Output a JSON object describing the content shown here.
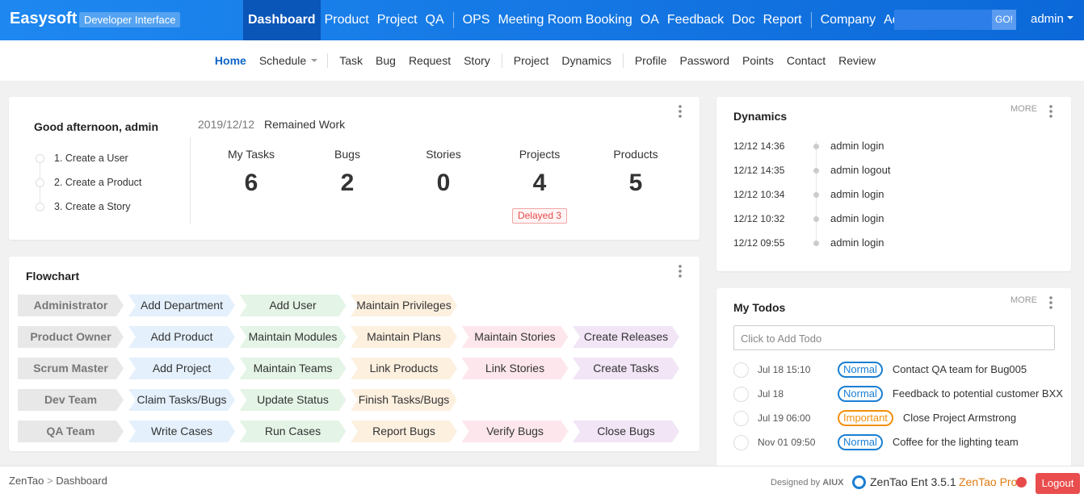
{
  "header": {
    "brand": "Easysoft",
    "badge": "Developer Interface",
    "nav": [
      [
        "Dashboard",
        "Product",
        "Project",
        "QA"
      ],
      [
        "OPS",
        "Meeting Room Booking",
        "OA",
        "Feedback",
        "Doc",
        "Report"
      ],
      [
        "Company",
        "Admin"
      ]
    ],
    "search_button": "GO!",
    "user": "admin"
  },
  "subnav": [
    [
      "Home",
      "Schedule"
    ],
    [
      "Task",
      "Bug",
      "Request",
      "Story"
    ],
    [
      "Project",
      "Dynamics"
    ],
    [
      "Profile",
      "Password",
      "Points",
      "Contact",
      "Review"
    ]
  ],
  "welcome": {
    "greeting": "Good afternoon, admin",
    "steps": [
      "1. Create a User",
      "2. Create a Product",
      "3. Create a Story"
    ],
    "date": "2019/12/12",
    "remained": "Remained Work",
    "stats": [
      {
        "label": "My Tasks",
        "value": 6
      },
      {
        "label": "Bugs",
        "value": 2
      },
      {
        "label": "Stories",
        "value": 0
      },
      {
        "label": "Projects",
        "value": 4,
        "note": "Delayed 3"
      },
      {
        "label": "Products",
        "value": 5
      }
    ]
  },
  "flowchart": {
    "title": "Flowchart",
    "rows": [
      {
        "role": "Administrator",
        "steps": [
          "Add Department",
          "Add User",
          "Maintain Privileges"
        ]
      },
      {
        "role": "Product Owner",
        "steps": [
          "Add Product",
          "Maintain Modules",
          "Maintain Plans",
          "Maintain Stories",
          "Create Releases"
        ]
      },
      {
        "role": "Scrum Master",
        "steps": [
          "Add Project",
          "Maintain Teams",
          "Link Products",
          "Link Stories",
          "Create Tasks"
        ]
      },
      {
        "role": "Dev Team",
        "steps": [
          "Claim Tasks/Bugs",
          "Update Status",
          "Finish Tasks/Bugs"
        ]
      },
      {
        "role": "QA Team",
        "steps": [
          "Write Cases",
          "Run Cases",
          "Report Bugs",
          "Verify Bugs",
          "Close Bugs"
        ]
      }
    ]
  },
  "dynamics": {
    "title": "Dynamics",
    "more": "MORE",
    "items": [
      {
        "time": "12/12 14:36",
        "text": "admin login"
      },
      {
        "time": "12/12 14:35",
        "text": "admin logout"
      },
      {
        "time": "12/12 10:34",
        "text": "admin login"
      },
      {
        "time": "12/12 10:32",
        "text": "admin login"
      },
      {
        "time": "12/12 09:55",
        "text": "admin login"
      }
    ]
  },
  "todos": {
    "title": "My Todos",
    "more": "MORE",
    "placeholder": "Click to Add Todo",
    "items": [
      {
        "date": "Jul 18 15:10",
        "priority": {
          "label": "Normal",
          "color": "#1a7fd4"
        },
        "text": "Contact QA team for Bug005"
      },
      {
        "date": "Jul 18",
        "priority": {
          "label": "Normal",
          "color": "#1a7fd4"
        },
        "text": "Feedback to potential customer BXX"
      },
      {
        "date": "Jul 19 06:00",
        "priority": {
          "label": "Important",
          "color": "#f1900e"
        },
        "text": "Close Project Armstrong"
      },
      {
        "date": "Nov 01 09:50",
        "priority": {
          "label": "Normal",
          "color": "#1a7fd4"
        },
        "text": "Coffee for the lighting team"
      }
    ]
  },
  "footer": {
    "breadcrumb": [
      "ZenTao",
      "Dashboard"
    ],
    "separator": ">",
    "designed_by": "Designed by",
    "aiux": "AIUX",
    "version": "ZenTao Ent 3.5.1",
    "pro": "ZenTao Pro",
    "logout": "Logout"
  }
}
